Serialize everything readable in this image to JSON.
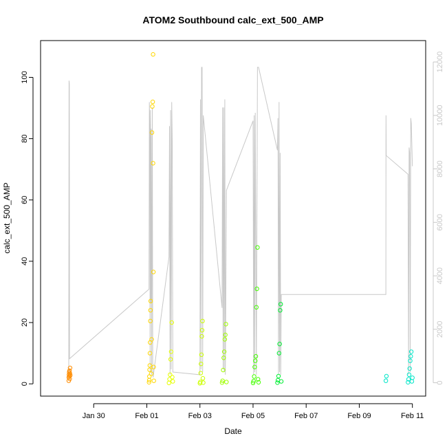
{
  "chart_data": {
    "type": "scatter",
    "title": "ATOM2 Southbound calc_ext_500_AMP",
    "xlabel": "Date",
    "ylabel": "calc_ext_500_AMP",
    "xlim": [
      "2020-01-28T00:00",
      "2020-02-11T12:00"
    ],
    "ylim": [
      -4,
      112
    ],
    "y_ticks": [
      0,
      20,
      40,
      60,
      80,
      100
    ],
    "x_ticks": [
      {
        "date": "2020-01-30",
        "label": "Jan 30"
      },
      {
        "date": "2020-02-01",
        "label": "Feb 01"
      },
      {
        "date": "2020-02-03",
        "label": "Feb 03"
      },
      {
        "date": "2020-02-05",
        "label": "Feb 05"
      },
      {
        "date": "2020-02-07",
        "label": "Feb 07"
      },
      {
        "date": "2020-02-09",
        "label": "Feb 09"
      },
      {
        "date": "2020-02-11",
        "label": "Feb 11"
      }
    ],
    "y2_ticks": [
      0,
      2000,
      4000,
      6000,
      8000,
      10000,
      12000
    ],
    "y2lim": [
      -500,
      12800
    ],
    "y2_color": "#c8c8c8",
    "grid": false,
    "marker": "open-circle",
    "series": [
      {
        "color": "#ff8c00",
        "points": [
          [
            "2020-01-29T01:30",
            1.0
          ],
          [
            "2020-01-29T01:30",
            2.1
          ],
          [
            "2020-01-29T01:40",
            3.0
          ],
          [
            "2020-01-29T01:50",
            3.8
          ],
          [
            "2020-01-29T02:00",
            2.5
          ],
          [
            "2020-01-29T02:10",
            4.3
          ],
          [
            "2020-01-29T02:20",
            1.6
          ],
          [
            "2020-01-29T02:30",
            3.4
          ],
          [
            "2020-01-29T02:40",
            5.2
          ],
          [
            "2020-01-29T02:50",
            2.8
          ]
        ]
      },
      {
        "color": "#ffd700",
        "points": [
          [
            "2020-02-01T02:00",
            0.5
          ],
          [
            "2020-02-01T02:10",
            1.2
          ],
          [
            "2020-02-01T02:20",
            2.4
          ],
          [
            "2020-02-01T02:30",
            4.6
          ],
          [
            "2020-02-01T02:40",
            6.0
          ],
          [
            "2020-02-01T02:50",
            10.0
          ],
          [
            "2020-02-01T03:00",
            13.5
          ],
          [
            "2020-02-01T03:10",
            20.5
          ],
          [
            "2020-02-01T03:20",
            24.0
          ],
          [
            "2020-02-01T03:30",
            27.0
          ],
          [
            "2020-02-01T04:00",
            3.3
          ],
          [
            "2020-02-01T04:20",
            14.5
          ],
          [
            "2020-02-01T04:40",
            82.0
          ],
          [
            "2020-02-01T05:00",
            90.5
          ],
          [
            "2020-02-01T05:20",
            92.0
          ],
          [
            "2020-02-01T05:40",
            72.0
          ],
          [
            "2020-02-01T05:40",
            107.5
          ],
          [
            "2020-02-01T06:00",
            36.5
          ],
          [
            "2020-02-01T06:10",
            5.5
          ],
          [
            "2020-02-01T06:20",
            1.0
          ]
        ]
      },
      {
        "color": "#e6ff00",
        "points": [
          [
            "2020-02-01T20:00",
            0.3
          ],
          [
            "2020-02-01T20:30",
            1.5
          ],
          [
            "2020-02-01T21:00",
            3.0
          ],
          [
            "2020-02-01T21:30",
            8.0
          ],
          [
            "2020-02-01T22:00",
            10.5
          ],
          [
            "2020-02-01T22:30",
            20.0
          ],
          [
            "2020-02-01T23:00",
            2.2
          ],
          [
            "2020-02-01T23:30",
            0.8
          ]
        ]
      },
      {
        "color": "#ccff00",
        "points": [
          [
            "2020-02-03T00:00",
            0.2
          ],
          [
            "2020-02-03T00:20",
            0.6
          ],
          [
            "2020-02-03T00:40",
            3.5
          ],
          [
            "2020-02-03T01:00",
            6.5
          ],
          [
            "2020-02-03T01:20",
            9.5
          ],
          [
            "2020-02-03T01:40",
            15.5
          ],
          [
            "2020-02-03T02:00",
            17.5
          ],
          [
            "2020-02-03T02:20",
            20.5
          ],
          [
            "2020-02-03T02:40",
            1.8
          ],
          [
            "2020-02-03T03:00",
            0.4
          ]
        ]
      },
      {
        "color": "#a0ff00",
        "points": [
          [
            "2020-02-03T20:00",
            0.4
          ],
          [
            "2020-02-03T20:30",
            1.0
          ],
          [
            "2020-02-03T21:00",
            4.5
          ],
          [
            "2020-02-03T21:30",
            8.5
          ],
          [
            "2020-02-03T22:00",
            10.5
          ],
          [
            "2020-02-03T22:30",
            14.5
          ],
          [
            "2020-02-03T23:00",
            16.0
          ],
          [
            "2020-02-03T23:30",
            19.5
          ],
          [
            "2020-02-04T00:00",
            0.6
          ]
        ]
      },
      {
        "color": "#44ff00",
        "points": [
          [
            "2020-02-05T00:00",
            0.3
          ],
          [
            "2020-02-05T00:30",
            0.9
          ],
          [
            "2020-02-05T01:00",
            2.4
          ],
          [
            "2020-02-05T01:30",
            5.5
          ],
          [
            "2020-02-05T02:00",
            7.5
          ],
          [
            "2020-02-05T02:30",
            9.0
          ],
          [
            "2020-02-05T03:00",
            25.0
          ],
          [
            "2020-02-05T03:30",
            31.0
          ],
          [
            "2020-02-05T04:00",
            44.5
          ],
          [
            "2020-02-05T04:30",
            1.5
          ],
          [
            "2020-02-05T05:00",
            0.5
          ]
        ]
      },
      {
        "color": "#00ee33",
        "points": [
          [
            "2020-02-05T22:00",
            0.4
          ],
          [
            "2020-02-05T22:30",
            1.2
          ],
          [
            "2020-02-05T23:00",
            2.5
          ],
          [
            "2020-02-05T23:30",
            10.0
          ],
          [
            "2020-02-06T00:00",
            13.0
          ],
          [
            "2020-02-06T00:30",
            24.0
          ],
          [
            "2020-02-06T01:00",
            26.0
          ],
          [
            "2020-02-06T01:30",
            0.8
          ]
        ]
      },
      {
        "color": "#00e6c8",
        "points": [
          [
            "2020-02-10T00:00",
            1.0
          ],
          [
            "2020-02-10T00:30",
            2.5
          ],
          [
            "2020-02-10T20:00",
            0.5
          ],
          [
            "2020-02-10T20:30",
            1.5
          ],
          [
            "2020-02-10T21:00",
            3.0
          ],
          [
            "2020-02-10T21:30",
            5.0
          ],
          [
            "2020-02-10T22:00",
            7.5
          ],
          [
            "2020-02-10T22:30",
            9.0
          ],
          [
            "2020-02-10T23:00",
            10.5
          ],
          [
            "2020-02-10T23:30",
            0.8
          ],
          [
            "2020-02-11T00:00",
            2.0
          ]
        ]
      }
    ],
    "line_series": {
      "color": "#c8c8c8",
      "axis": "right",
      "points": [
        [
          "2020-01-29T01:30",
          300
        ],
        [
          "2020-01-29T01:45",
          11300
        ],
        [
          "2020-01-29T02:00",
          11200
        ],
        [
          "2020-01-29T02:10",
          900
        ],
        [
          "2020-02-01T02:00",
          3500
        ],
        [
          "2020-02-01T02:20",
          10500
        ],
        [
          "2020-02-01T02:40",
          9600
        ],
        [
          "2020-02-01T03:00",
          400
        ],
        [
          "2020-02-01T03:20",
          10200
        ],
        [
          "2020-02-01T03:40",
          3000
        ],
        [
          "2020-02-01T04:00",
          9500
        ],
        [
          "2020-02-01T04:20",
          300
        ],
        [
          "2020-02-01T04:40",
          5800
        ],
        [
          "2020-02-01T05:00",
          10300
        ],
        [
          "2020-02-01T05:20",
          600
        ],
        [
          "2020-02-01T05:40",
          200
        ],
        [
          "2020-02-01T20:00",
          4700
        ],
        [
          "2020-02-01T20:30",
          9600
        ],
        [
          "2020-02-01T21:00",
          300
        ],
        [
          "2020-02-01T21:30",
          10200
        ],
        [
          "2020-02-01T22:00",
          500
        ],
        [
          "2020-02-01T22:30",
          10500
        ],
        [
          "2020-02-01T23:00",
          9000
        ],
        [
          "2020-02-01T23:30",
          400
        ],
        [
          "2020-02-03T00:00",
          300
        ],
        [
          "2020-02-03T00:30",
          10600
        ],
        [
          "2020-02-03T01:00",
          500
        ],
        [
          "2020-02-03T01:30",
          11800
        ],
        [
          "2020-02-03T02:00",
          11800
        ],
        [
          "2020-02-03T02:30",
          400
        ],
        [
          "2020-02-03T03:00",
          10000
        ],
        [
          "2020-02-03T20:00",
          2800
        ],
        [
          "2020-02-03T20:30",
          10300
        ],
        [
          "2020-02-03T21:00",
          500
        ],
        [
          "2020-02-03T21:30",
          10300
        ],
        [
          "2020-02-03T22:00",
          400
        ],
        [
          "2020-02-03T22:30",
          10600
        ],
        [
          "2020-02-03T23:00",
          300
        ],
        [
          "2020-02-04T00:00",
          7200
        ],
        [
          "2020-02-05T00:00",
          9800
        ],
        [
          "2020-02-05T00:30",
          300
        ],
        [
          "2020-02-05T01:00",
          10000
        ],
        [
          "2020-02-05T01:30",
          400
        ],
        [
          "2020-02-05T02:00",
          10100
        ],
        [
          "2020-02-05T03:00",
          300
        ],
        [
          "2020-02-05T04:00",
          11800
        ],
        [
          "2020-02-05T05:00",
          11800
        ],
        [
          "2020-02-05T22:00",
          8700
        ],
        [
          "2020-02-05T22:30",
          9900
        ],
        [
          "2020-02-05T23:00",
          300
        ],
        [
          "2020-02-05T23:30",
          10500
        ],
        [
          "2020-02-06T00:00",
          400
        ],
        [
          "2020-02-06T00:30",
          8600
        ],
        [
          "2020-02-06T01:00",
          300
        ],
        [
          "2020-02-06T01:30",
          3300
        ],
        [
          "2020-02-10T00:00",
          3300
        ],
        [
          "2020-02-10T00:10",
          10000
        ],
        [
          "2020-02-10T00:20",
          8500
        ],
        [
          "2020-02-10T20:00",
          7800
        ],
        [
          "2020-02-10T20:30",
          300
        ],
        [
          "2020-02-10T21:00",
          8800
        ],
        [
          "2020-02-10T21:30",
          8600
        ],
        [
          "2020-02-10T22:00",
          400
        ],
        [
          "2020-02-10T22:30",
          9900
        ],
        [
          "2020-02-10T23:00",
          9700
        ],
        [
          "2020-02-11T00:00",
          8100
        ]
      ]
    }
  }
}
